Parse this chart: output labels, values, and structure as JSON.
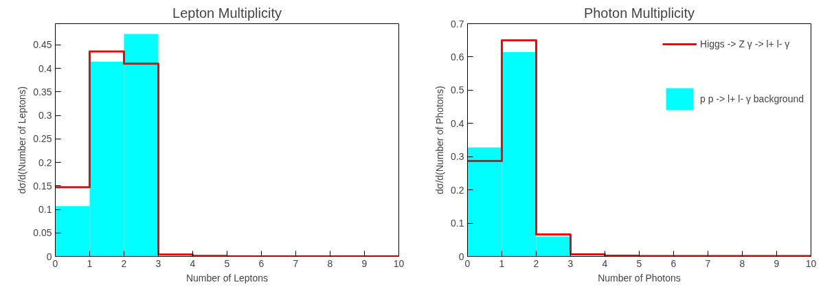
{
  "chart_data": [
    {
      "type": "histogram",
      "title": "Lepton Multiplicity",
      "xlabel": "Number of Leptons",
      "ylabel": "dσ/d(Number of Leptons)",
      "bins": [
        0,
        1,
        2,
        3,
        4,
        5,
        6,
        7,
        8,
        9,
        10
      ],
      "xlim": [
        0,
        10
      ],
      "xticks": [
        0,
        1,
        2,
        3,
        4,
        5,
        6,
        7,
        8,
        9,
        10
      ],
      "ylim": [
        0,
        0.495
      ],
      "yticks": [
        0,
        0.05,
        0.1,
        0.15,
        0.2,
        0.25,
        0.3,
        0.35,
        0.4,
        0.45
      ],
      "grid": false,
      "legend": false,
      "series": [
        {
          "color": "#00ffff",
          "values": [
            0.107,
            0.414,
            0.473,
            0,
            0,
            0,
            0,
            0,
            0,
            0
          ]
        },
        {
          "type": "step",
          "color": "#ff0000",
          "x": [
            0,
            1,
            2,
            3,
            4,
            5,
            6,
            7,
            8,
            9,
            10
          ],
          "values": [
            0.147,
            0.436,
            0.41,
            0.004,
            0.001,
            0,
            0,
            0,
            0,
            0,
            0
          ]
        }
      ]
    },
    {
      "type": "histogram",
      "title": "Photon Multiplicity",
      "xlabel": "Number of Photons",
      "ylabel": "dσ/d(Number of Photons)",
      "bins": [
        0,
        1,
        2,
        3,
        4,
        5,
        6,
        7,
        8,
        9,
        10
      ],
      "xlim": [
        0,
        10
      ],
      "xticks": [
        0,
        1,
        2,
        3,
        4,
        5,
        6,
        7,
        8,
        9,
        10
      ],
      "ylim": [
        0,
        0.7
      ],
      "yticks": [
        0,
        0.1,
        0.2,
        0.3,
        0.4,
        0.5,
        0.6,
        0.7
      ],
      "grid": false,
      "legend": "top right",
      "series": [
        {
          "name": "p p -> l+ l- γ background",
          "color": "#00ffff",
          "values": [
            0.328,
            0.615,
            0.06,
            0,
            0,
            0,
            0,
            0,
            0,
            0
          ]
        },
        {
          "type": "step",
          "name": "Higgs -> Z γ -> l+ l- γ",
          "color": "#ff0000",
          "x": [
            0,
            1,
            2,
            3,
            4,
            5,
            6,
            7,
            8,
            9,
            10
          ],
          "values": [
            0.287,
            0.65,
            0.066,
            0.006,
            0.002,
            0.001,
            0.001,
            0.001,
            0.001,
            0.001,
            0.001
          ]
        }
      ]
    }
  ]
}
